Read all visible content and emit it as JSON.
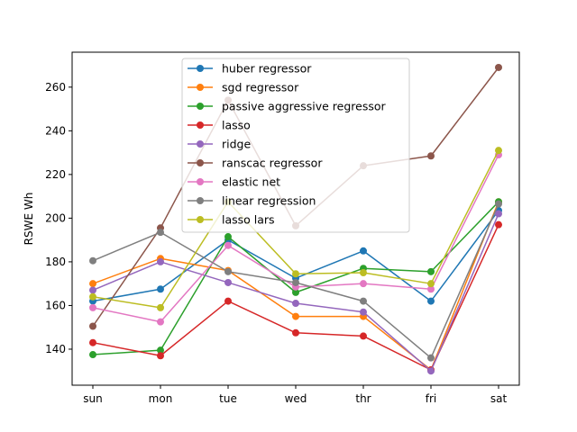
{
  "chart_data": {
    "type": "line",
    "title": "",
    "xlabel": "",
    "ylabel": "RSWE Wh",
    "categories": [
      "sun",
      "mon",
      "tue",
      "wed",
      "thr",
      "fri",
      "sat"
    ],
    "yticks": [
      140,
      160,
      180,
      200,
      220,
      240,
      260
    ],
    "ylim": [
      123.5,
      276.0
    ],
    "grid": false,
    "legend_position": "top-center",
    "series": [
      {
        "name": "huber regressor",
        "color": "#1f77b4",
        "values": [
          162,
          167.5,
          190,
          172.5,
          185,
          162,
          203.5
        ]
      },
      {
        "name": "sgd regressor",
        "color": "#ff7f0e",
        "values": [
          170,
          181.5,
          176,
          155,
          155,
          130.5,
          207.5
        ]
      },
      {
        "name": "passive aggressive regressor",
        "color": "#2ca02c",
        "values": [
          137.5,
          139.5,
          191.5,
          166,
          177,
          175.5,
          207.5
        ]
      },
      {
        "name": "lasso",
        "color": "#d62728",
        "values": [
          143,
          137,
          162,
          147.5,
          146,
          130.5,
          197
        ]
      },
      {
        "name": "ridge",
        "color": "#9467bd",
        "values": [
          167,
          180,
          170.5,
          161,
          157,
          130,
          202
        ]
      },
      {
        "name": "ranscac regressor",
        "color": "#8c564b",
        "values": [
          150.5,
          195.5,
          254,
          196.5,
          224,
          228.5,
          269
        ]
      },
      {
        "name": "elastic net",
        "color": "#e377c2",
        "values": [
          159,
          152.5,
          187.5,
          168.5,
          170,
          167.5,
          229
        ]
      },
      {
        "name": "linear regression",
        "color": "#7f7f7f",
        "values": [
          180.5,
          193.5,
          175.5,
          170.5,
          162,
          136,
          206.5
        ]
      },
      {
        "name": "lasso lars",
        "color": "#bcbd22",
        "values": [
          164,
          159,
          207.5,
          174.5,
          175,
          170,
          231
        ]
      }
    ]
  }
}
